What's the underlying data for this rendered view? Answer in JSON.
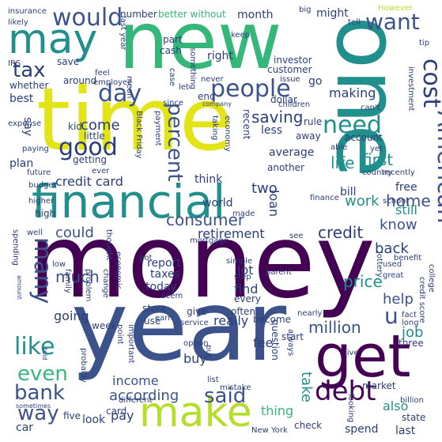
{
  "words": {
    "money": "money",
    "time": "time",
    "new": "new",
    "one": "one",
    "year": "year",
    "financial": "financial",
    "may": "may",
    "get": "get",
    "make": "make",
    "people": "people",
    "would": "would",
    "tax": "tax",
    "want": "want",
    "cost": "cost",
    "day": "day",
    "percent": "percent",
    "good": "good",
    "need": "need",
    "like": "like",
    "many": "many",
    "american": "American",
    "even": "even",
    "bank": "bank",
    "said": "said",
    "way": "way",
    "debt": "debt",
    "credit_card": "credit card",
    "consumer": "consumer",
    "retirement": "retirement",
    "credit": "credit",
    "know": "know",
    "home": "home",
    "work": "work",
    "first": "first",
    "life": "life",
    "saving": "saving",
    "making": "making",
    "come": "come",
    "much": "much",
    "could": "could",
    "according": "according",
    "income": "income",
    "million": "million",
    "take": "take",
    "thing": "thing",
    "also": "also",
    "help": "help",
    "u": "u",
    "price": "price",
    "job": "job",
    "back": "back",
    "lot": "lot",
    "find": "find",
    "loan": "loan",
    "two": "two",
    "think": "think",
    "world": "world",
    "still": "still",
    "bill": "bill",
    "free": "free",
    "fee": "fee",
    "buy": "buy",
    "really": "really",
    "going": "going",
    "today": "today",
    "taxes": "taxes",
    "report": "report",
    "pay": "pay",
    "spend": "spend",
    "month": "month",
    "right": "right",
    "better_without": "better without",
    "number": "number",
    "might": "might",
    "around": "around",
    "whether": "whether",
    "best": "best",
    "say": "say",
    "plan": "plan",
    "little": "little",
    "kid": "kid",
    "getting": "getting",
    "average": "average",
    "account": "account",
    "recent": "recent",
    "less": "less",
    "another": "another",
    "rule": "rule",
    "go": "go",
    "cash": "cash",
    "part": "part",
    "keep": "keep",
    "investor": "investor",
    "customer": "customer",
    "save": "save",
    "insurance": "insurance",
    "likely": "likely",
    "last_year": "last year",
    "however": "However",
    "tell": "tell",
    "big": "big",
    "tip": "tip",
    "irs": "IRS",
    "feel": "feel",
    "employee": "employee",
    "mean": "mean",
    "case": "case",
    "something": "something",
    "let": "let",
    "never": "never",
    "issue": "issue",
    "end": "end",
    "dollar": "dollar",
    "since": "since",
    "company": "company",
    "children": "children",
    "investment": "investment",
    "cant": "can't",
    "expense": "expense",
    "paying": "paying",
    "black_friday": "Black Friday",
    "payment": "payment",
    "taking": "taking",
    "economy": "economy",
    "yet": "yet",
    "able": "able",
    "country": "country",
    "recently": "recently",
    "future": "future",
    "ever": "ever",
    "budget": "budget",
    "higher": "higher",
    "high": "high",
    "mortgage": "mortgage",
    "made": "made",
    "finance": "finance",
    "school": "school",
    "well": "well",
    "spending": "spending",
    "thought": "thought",
    "see": "see",
    "parent": "parent",
    "lottery": "lottery",
    "benefit": "benefit",
    "college": "college",
    "credit_score": "credit score",
    "used": "used",
    "low": "low",
    "family": "family",
    "problem": "problem",
    "change": "change",
    "economic": "economic",
    "got": "got",
    "simple": "simple",
    "step": "step",
    "every": "every",
    "often": "often",
    "great": "great",
    "seem": "seem",
    "away": "away",
    "amount": "amount",
    "store": "store",
    "week": "week",
    "use": "use",
    "give": "give",
    "become": "become",
    "nearly": "nearly",
    "question": "question",
    "start": "start",
    "live": "live",
    "three": "three",
    "fact": "fact",
    "long": "long",
    "earn": "earn",
    "service": "service",
    "point": "point",
    "important": "important",
    "option": "option",
    "put": "put",
    "always": "always",
    "market": "market",
    "told": "told",
    "probably": "probably",
    "sometimes": "sometimes",
    "different": "different",
    "list": "list",
    "mistake": "mistake",
    "looking": "looking",
    "billion": "billion",
    "card": "card",
    "five": "five",
    "look": "look",
    "car": "car",
    "new_york": "New York",
    "check": "check",
    "state": "state",
    "last": "last"
  },
  "palette": {
    "purple": "#440154",
    "indigo": "#3b528b",
    "blue": "#31688e",
    "teal": "#21908d",
    "green": "#35b779",
    "lime": "#8fd744",
    "yellow": "#e2e418"
  }
}
